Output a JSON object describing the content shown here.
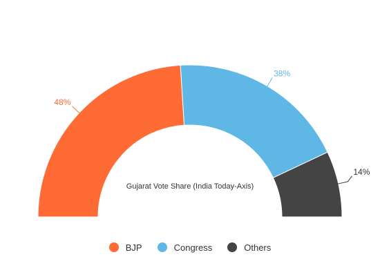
{
  "chart_data": {
    "type": "pie",
    "title": "Gujarat Vote Share (India Today-Axis)",
    "style": "semi-donut",
    "categories": [
      "BJP",
      "Congress",
      "Others"
    ],
    "values": [
      48,
      38,
      14
    ],
    "value_labels": [
      "48%",
      "38%",
      "14%"
    ],
    "colors": [
      "#ff6b35",
      "#5fb7e5",
      "#444444"
    ],
    "label_colors": [
      "#ff6b35",
      "#5fb7e5",
      "#333333"
    ],
    "legend_position": "bottom"
  }
}
